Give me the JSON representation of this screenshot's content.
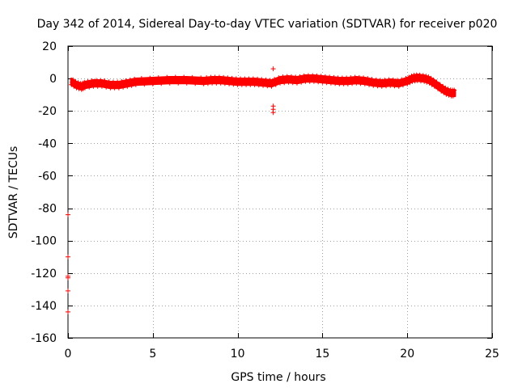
{
  "chart_data": {
    "type": "scatter",
    "title": "Day 342 of 2014, Sidereal Day-to-day VTEC variation (SDTVAR) for receiver p020",
    "xlabel": "GPS time / hours",
    "ylabel": "SDTVAR / TECUs",
    "xlim": [
      0,
      25
    ],
    "ylim": [
      -160,
      20
    ],
    "xticks": [
      0,
      5,
      10,
      15,
      20,
      25
    ],
    "yticks": [
      -160,
      -140,
      -120,
      -100,
      -80,
      -60,
      -40,
      -20,
      0,
      20
    ],
    "xtick_labels": [
      "0",
      "5",
      "10",
      "15",
      "20",
      "25"
    ],
    "ytick_labels": [
      "-160",
      "-140",
      "-120",
      "-100",
      "-80",
      "-60",
      "-40",
      "-20",
      "0",
      "20"
    ],
    "grid": true,
    "marker": "+",
    "series": [
      {
        "name": "SDTVAR",
        "color": "#ff0000",
        "band_x": [
          0.2,
          0.5,
          0.8,
          1.0,
          1.5,
          2.0,
          2.5,
          3.0,
          3.5,
          4.0,
          5.0,
          6.0,
          7.0,
          8.0,
          8.5,
          9.0,
          9.5,
          10.0,
          10.5,
          11.0,
          11.5,
          12.0,
          12.5,
          13.0,
          13.5,
          14.0,
          14.5,
          15.0,
          15.5,
          16.0,
          16.5,
          17.0,
          17.5,
          18.0,
          18.5,
          19.0,
          19.5,
          20.0,
          20.3,
          20.6,
          21.0,
          21.3,
          21.6,
          22.0,
          22.3,
          22.6,
          22.8
        ],
        "band_y": [
          -2,
          -4,
          -5,
          -4,
          -3,
          -3,
          -4,
          -4,
          -3,
          -2,
          -1.5,
          -1,
          -1,
          -1.5,
          -1,
          -1,
          -1.5,
          -2,
          -2,
          -2,
          -2.5,
          -3,
          -1,
          -0.5,
          -1,
          0,
          0,
          -0.5,
          -1,
          -1.5,
          -1.5,
          -1,
          -1.5,
          -2.5,
          -3,
          -2.5,
          -3,
          -1.5,
          0,
          0.5,
          0,
          -1,
          -3,
          -6,
          -8,
          -9,
          -9
        ],
        "band_halfwidth": 1.8,
        "outliers": [
          {
            "x": 12.1,
            "y": 6
          },
          {
            "x": 12.1,
            "y": -17
          },
          {
            "x": 12.1,
            "y": -19
          },
          {
            "x": 12.1,
            "y": -21
          },
          {
            "x": 12.1,
            "y": -2
          },
          {
            "x": 0.0,
            "y": -84
          },
          {
            "x": 0.0,
            "y": -110
          },
          {
            "x": 0.0,
            "y": -122
          },
          {
            "x": 0.0,
            "y": -123
          },
          {
            "x": 0.0,
            "y": -131
          },
          {
            "x": 0.0,
            "y": -144
          }
        ]
      }
    ]
  }
}
